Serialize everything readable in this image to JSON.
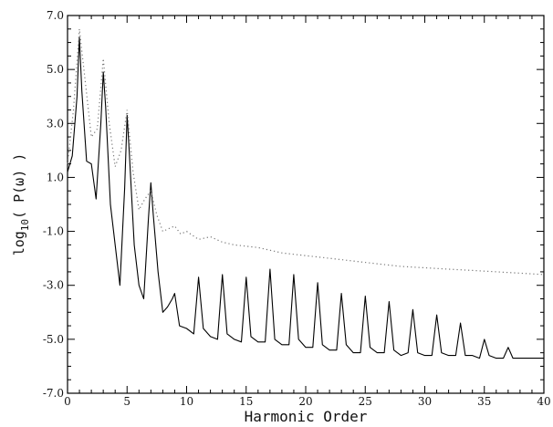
{
  "chart_data": {
    "type": "line",
    "title": "",
    "xlabel": "Harmonic Order",
    "ylabel": {
      "prefix": "log",
      "subscript": "10",
      "suffix": "( P(ω) )"
    },
    "xlim": [
      0,
      40
    ],
    "ylim": [
      -7.0,
      7.0
    ],
    "x_ticks": [
      0,
      5,
      10,
      15,
      20,
      25,
      30,
      35,
      40
    ],
    "y_ticks": [
      7.0,
      5.0,
      3.0,
      1.0,
      -1.0,
      -3.0,
      -5.0,
      -7.0
    ],
    "x_tick_labels": [
      "0",
      "5",
      "10",
      "15",
      "20",
      "25",
      "30",
      "35",
      "40"
    ],
    "y_tick_labels": [
      "7.0",
      "5.0",
      "3.0",
      "1.0",
      "-1.0",
      "-3.0",
      "-5.0",
      "-7.0"
    ],
    "grid": false,
    "series": [
      {
        "style": "solid",
        "color": "#000000",
        "x": [
          0,
          0.4,
          0.8,
          1.0,
          1.2,
          1.6,
          2.0,
          2.4,
          2.8,
          3.0,
          3.2,
          3.6,
          4.0,
          4.4,
          4.8,
          5.0,
          5.2,
          5.6,
          6.0,
          6.4,
          6.8,
          7.0,
          7.2,
          7.6,
          8.0,
          8.4,
          8.8,
          9.0,
          9.4,
          10.0,
          10.6,
          11.0,
          11.4,
          12.0,
          12.6,
          13.0,
          13.4,
          14.0,
          14.6,
          15.0,
          15.4,
          16.0,
          16.6,
          17.0,
          17.4,
          18.0,
          18.6,
          19.0,
          19.4,
          20.0,
          20.6,
          21.0,
          21.4,
          22.0,
          22.6,
          23.0,
          23.4,
          24.0,
          24.6,
          25.0,
          25.4,
          26.0,
          26.6,
          27.0,
          27.4,
          28.0,
          28.6,
          29.0,
          29.4,
          30.0,
          30.6,
          31.0,
          31.4,
          32.0,
          32.6,
          33.0,
          33.4,
          34.0,
          34.6,
          35.0,
          35.4,
          36.0,
          36.6,
          37.0,
          37.4,
          38.0,
          39.0,
          40.0
        ],
        "y": [
          1.2,
          1.8,
          4.0,
          6.2,
          4.2,
          1.6,
          1.5,
          0.2,
          3.0,
          4.9,
          3.6,
          0.0,
          -1.5,
          -3.0,
          0.6,
          3.3,
          1.8,
          -1.5,
          -3.0,
          -3.5,
          -0.5,
          0.8,
          -0.4,
          -2.5,
          -4.0,
          -3.8,
          -3.5,
          -3.3,
          -4.5,
          -4.6,
          -4.8,
          -2.7,
          -4.6,
          -4.9,
          -5.0,
          -2.6,
          -4.8,
          -5.0,
          -5.1,
          -2.7,
          -4.9,
          -5.1,
          -5.1,
          -2.4,
          -5.0,
          -5.2,
          -5.2,
          -2.6,
          -5.0,
          -5.3,
          -5.3,
          -2.9,
          -5.2,
          -5.4,
          -5.4,
          -3.3,
          -5.2,
          -5.5,
          -5.5,
          -3.4,
          -5.3,
          -5.5,
          -5.5,
          -3.6,
          -5.4,
          -5.6,
          -5.5,
          -3.9,
          -5.5,
          -5.6,
          -5.6,
          -4.1,
          -5.5,
          -5.6,
          -5.6,
          -4.4,
          -5.6,
          -5.6,
          -5.7,
          -5.0,
          -5.6,
          -5.7,
          -5.7,
          -5.3,
          -5.7,
          -5.7,
          -5.7,
          -5.7
        ]
      },
      {
        "style": "dotted",
        "color": "#777777",
        "x": [
          0,
          0.5,
          1.0,
          1.5,
          2.0,
          2.5,
          3.0,
          3.5,
          4.0,
          4.5,
          5.0,
          5.5,
          6.0,
          6.5,
          7.0,
          7.5,
          8.0,
          8.5,
          9.0,
          9.5,
          10.0,
          11.0,
          12.0,
          13.0,
          14.0,
          16.0,
          18.0,
          20.0,
          22.0,
          24.0,
          26.0,
          28.0,
          30.0,
          32.0,
          34.0,
          36.0,
          38.0,
          40.0
        ],
        "y": [
          1.5,
          3.5,
          6.5,
          4.5,
          2.5,
          2.8,
          5.4,
          3.0,
          1.4,
          2.0,
          3.5,
          1.2,
          -0.2,
          0.2,
          0.5,
          -0.4,
          -1.0,
          -0.9,
          -0.8,
          -1.1,
          -1.0,
          -1.3,
          -1.2,
          -1.4,
          -1.5,
          -1.6,
          -1.8,
          -1.9,
          -2.0,
          -2.1,
          -2.2,
          -2.3,
          -2.35,
          -2.4,
          -2.45,
          -2.5,
          -2.55,
          -2.6
        ]
      }
    ]
  }
}
